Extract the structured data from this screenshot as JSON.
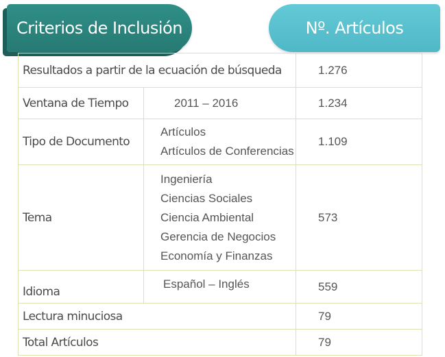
{
  "header": {
    "left": "Criterios de Inclusión",
    "right": "Nº. Artículos"
  },
  "rows": [
    {
      "label": "Resultados a partir de la ecuación de búsqueda",
      "detail": [],
      "count": "1.276"
    },
    {
      "label": "Ventana de Tiempo",
      "detail": [
        "2011 – 2016"
      ],
      "count": "1.234"
    },
    {
      "label": "Tipo de Documento",
      "detail": [
        "Artículos",
        "Artículos de Conferencias"
      ],
      "count": "1.109"
    },
    {
      "label": "Tema",
      "detail": [
        "Ingeniería",
        "Ciencias Sociales",
        "Ciencia Ambiental",
        "Gerencia de Negocios",
        "Economía y Finanzas"
      ],
      "count": "573"
    },
    {
      "label": "Idioma",
      "detail": [
        "Español – Inglés"
      ],
      "count": "559"
    },
    {
      "label": "Lectura minuciosa",
      "detail": [],
      "count": "79"
    },
    {
      "label": "Total Artículos",
      "detail": [],
      "count": "79"
    }
  ]
}
